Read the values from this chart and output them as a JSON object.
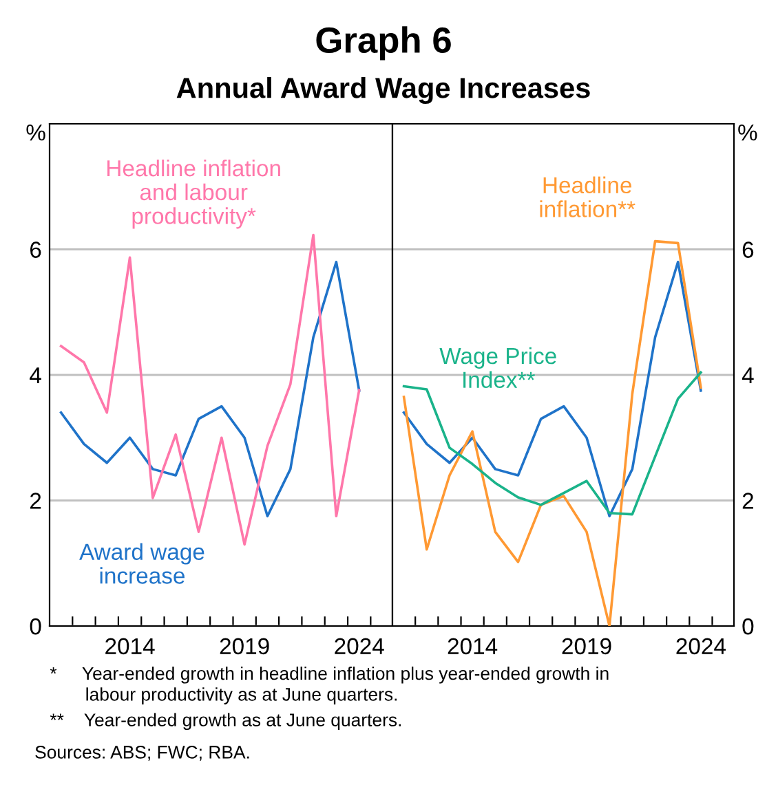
{
  "chart_data": [
    {
      "type": "line",
      "title": "Graph 6",
      "subtitle": "Annual Award Wage Increases",
      "ylabel": "%",
      "x": [
        2011,
        2012,
        2013,
        2014,
        2015,
        2016,
        2017,
        2018,
        2019,
        2020,
        2021,
        2022,
        2023,
        2024
      ],
      "series": [
        {
          "name": "Award wage increase",
          "color": "#1f73c9",
          "values": [
            3.4,
            2.9,
            2.6,
            3.0,
            2.5,
            2.4,
            3.3,
            3.5,
            3.0,
            1.75,
            2.5,
            4.6,
            5.8,
            3.75
          ]
        },
        {
          "name": "Headline inflation and labour productivity*",
          "color": "#ff77aa",
          "values": [
            4.46,
            4.2,
            3.4,
            5.87,
            2.04,
            3.05,
            1.5,
            3.0,
            1.3,
            2.87,
            3.85,
            6.23,
            1.75,
            3.76
          ]
        }
      ],
      "xlim": [
        2010.5,
        2025.45
      ],
      "ylim": [
        0,
        8
      ],
      "xticks": [
        {
          "value": 2011.5,
          "label": null
        },
        {
          "value": 2012.5,
          "label": null
        },
        {
          "value": 2013.5,
          "label": null
        },
        {
          "value": 2014.5,
          "label": null
        },
        {
          "value": 2015.5,
          "label": null
        },
        {
          "value": 2016.5,
          "label": null
        },
        {
          "value": 2017.5,
          "label": null
        },
        {
          "value": 2018.5,
          "label": null
        },
        {
          "value": 2019.5,
          "label": null
        },
        {
          "value": 2020.5,
          "label": null
        },
        {
          "value": 2021.5,
          "label": null
        },
        {
          "value": 2022.5,
          "label": null
        },
        {
          "value": 2023.5,
          "label": null
        },
        {
          "value": 2024.5,
          "label": null
        },
        2014,
        2019,
        2024
      ],
      "yticks": [
        0,
        2,
        4,
        6
      ],
      "grid": "y",
      "legend": false
    },
    {
      "type": "line",
      "ylabel": "%",
      "x": [
        2011,
        2012,
        2013,
        2014,
        2015,
        2016,
        2017,
        2018,
        2019,
        2020,
        2021,
        2022,
        2023,
        2024
      ],
      "series": [
        {
          "color": "#1f73c9",
          "values": [
            3.4,
            2.9,
            2.6,
            3.0,
            2.5,
            2.4,
            3.3,
            3.5,
            3.0,
            1.75,
            2.5,
            4.6,
            5.8,
            3.75
          ]
        },
        {
          "name": "Headline inflation**",
          "color": "#ff9933",
          "values": [
            3.65,
            1.22,
            2.4,
            3.1,
            1.5,
            1.02,
            1.93,
            2.07,
            1.5,
            0,
            3.7,
            6.13,
            6.1,
            3.8
          ]
        },
        {
          "name": "Wage Price Index**",
          "color": "#1ab38a",
          "values": [
            3.82,
            3.77,
            2.84,
            2.58,
            2.28,
            2.05,
            1.93,
            2.12,
            2.31,
            1.8,
            1.78,
            2.7,
            3.62,
            4.04
          ]
        }
      ],
      "xlim": [
        2010.5,
        2025.45
      ],
      "ylim": [
        0,
        8
      ],
      "xticks": [
        {
          "value": 2011.5,
          "label": null
        },
        {
          "value": 2012.5,
          "label": null
        },
        {
          "value": 2013.5,
          "label": null
        },
        {
          "value": 2014.5,
          "label": null
        },
        {
          "value": 2015.5,
          "label": null
        },
        {
          "value": 2016.5,
          "label": null
        },
        {
          "value": 2017.5,
          "label": null
        },
        {
          "value": 2018.5,
          "label": null
        },
        {
          "value": 2019.5,
          "label": null
        },
        {
          "value": 2020.5,
          "label": null
        },
        {
          "value": 2021.5,
          "label": null
        },
        {
          "value": 2022.5,
          "label": null
        },
        {
          "value": 2023.5,
          "label": null
        },
        {
          "value": 2024.5,
          "label": null
        },
        2014,
        2019,
        2024
      ],
      "yticks": [
        0,
        2,
        4,
        6
      ],
      "grid": "y",
      "legend": false,
      "annotations": [
        "*     Year-ended growth in headline inflation plus year-ended growth in\n       labour productivity as at June quarters.",
        "**    Year-ended growth as at June quarters.",
        "Sources: ABS; FWC; RBA."
      ]
    }
  ]
}
